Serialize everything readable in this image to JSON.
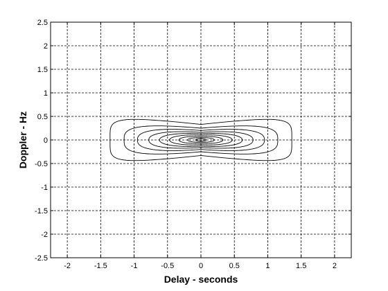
{
  "chart_data": {
    "type": "contour",
    "title": "",
    "xlabel": "Delay - seconds",
    "ylabel": "Doppler - Hz",
    "xlim": [
      -2.25,
      2.25
    ],
    "ylim": [
      -2.5,
      2.5
    ],
    "xticks": [
      -2,
      -1.5,
      -1,
      -0.5,
      0,
      0.5,
      1,
      1.5,
      2
    ],
    "yticks": [
      2.5,
      2,
      1.5,
      1,
      0.5,
      0,
      -0.5,
      -1,
      -1.5,
      -2,
      -2.5
    ],
    "xtick_labels": [
      "-2",
      "-1.5",
      "-1",
      "-0.5",
      "0",
      "0.5",
      "1",
      "1.5",
      "2"
    ],
    "ytick_labels": [
      "2.5",
      "2",
      "1.5",
      "1",
      "0.5",
      "0",
      "-0.5",
      "-1",
      "-1.5",
      "-2",
      "-2.5"
    ],
    "grid": true,
    "grid_style": "dashed",
    "contours": [
      {
        "level": 1,
        "half_width": 1.36,
        "half_height": 0.5,
        "waist": 0.33,
        "exponent": 5
      },
      {
        "level": 2,
        "half_width": 1.15,
        "half_height": 0.36,
        "waist": 0.25,
        "exponent": 3.2
      },
      {
        "level": 3,
        "half_width": 0.95,
        "half_height": 0.28,
        "waist": 0.2,
        "exponent": 2.6
      },
      {
        "level": 4,
        "half_width": 0.78,
        "half_height": 0.22,
        "waist": 0.16,
        "exponent": 2.3
      },
      {
        "level": 5,
        "half_width": 0.62,
        "half_height": 0.17,
        "waist": 0.13,
        "exponent": 2.1
      },
      {
        "level": 6,
        "half_width": 0.47,
        "half_height": 0.13,
        "waist": 0.1,
        "exponent": 2.0
      },
      {
        "level": 7,
        "half_width": 0.33,
        "half_height": 0.09,
        "waist": 0.07,
        "exponent": 2.0
      },
      {
        "level": 8,
        "half_width": 0.2,
        "half_height": 0.055,
        "waist": 0.045,
        "exponent": 2.0
      },
      {
        "level": 9,
        "half_width": 0.08,
        "half_height": 0.025,
        "waist": 0.022,
        "exponent": 2.0
      }
    ]
  }
}
